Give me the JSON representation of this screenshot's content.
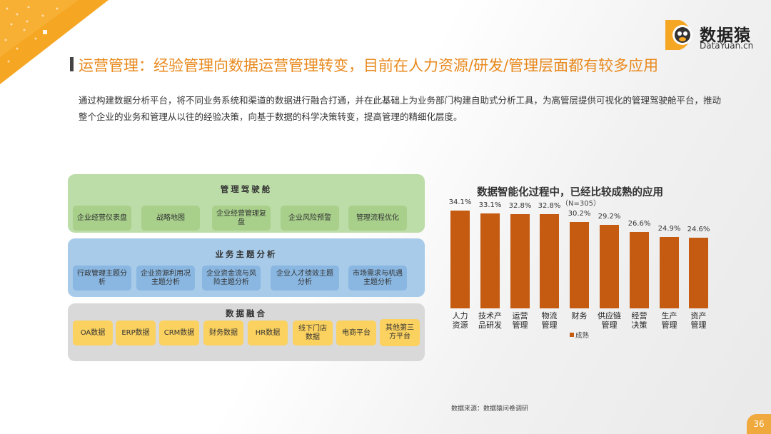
{
  "brand": {
    "logo_cn": "数据猿",
    "logo_en": "DataYuan.cn",
    "accent": "#e8891d",
    "bar_color": "#c55a11"
  },
  "page_title": "运营管理：经验管理向数据运营管理转变，目前在人力资源/研发/管理层面都有较多应用",
  "description": "通过构建数据分析平台，将不同业务系统和渠道的数据进行融合打通，并在此基础上为业务部门构建自助式分析工具，为高管层提供可视化的管理驾驶舱平台，推动整个企业的业务和管理从以往的经验决策，向基于数据的科学决策转变，提高管理的精细化层度。",
  "diagram": {
    "cockpit": {
      "title": "管理驾驶舱",
      "items": [
        "企业经营仪表盘",
        "战略地图",
        "企业经营管理复盘",
        "企业风险预警",
        "管理流程优化"
      ]
    },
    "analysis": {
      "title": "业务主题分析",
      "items": [
        "行政管理主题分析",
        "企业资源利用况主题分析",
        "企业资金流与风险主题分析",
        "企业人才绩效主题分析",
        "市场需求与机遇主题分析"
      ]
    },
    "fusion": {
      "title": "数据融合",
      "items": [
        "OA数据",
        "ERP数据",
        "CRM数据",
        "财务数据",
        "HR数据",
        "线下门店数据",
        "电商平台",
        "其他第三方平台"
      ]
    }
  },
  "chart_data": {
    "type": "bar",
    "title": "数据智能化过程中，已经比较成熟的应用",
    "subtitle": "（N=305）",
    "categories": [
      "人力资源",
      "技术产品研发",
      "运营管理",
      "物流管理",
      "财务",
      "供应链管理",
      "经营决策",
      "生产管理",
      "资产管理"
    ],
    "category_lines": [
      [
        "人力",
        "资源"
      ],
      [
        "技术产",
        "品研发"
      ],
      [
        "运营",
        "管理"
      ],
      [
        "物流",
        "管理"
      ],
      [
        "财务",
        ""
      ],
      [
        "供应链",
        "管理"
      ],
      [
        "经营",
        "决策"
      ],
      [
        "生产",
        "管理"
      ],
      [
        "资产",
        "管理"
      ]
    ],
    "series": [
      {
        "name": "成熟",
        "values": [
          34.1,
          33.1,
          32.8,
          32.8,
          30.2,
          29.2,
          26.6,
          24.9,
          24.6
        ]
      }
    ],
    "value_labels": [
      "34.1%",
      "33.1%",
      "32.8%",
      "32.8%",
      "30.2%",
      "29.2%",
      "26.6%",
      "24.9%",
      "24.6%"
    ],
    "ylim": [
      0,
      34.1
    ],
    "legend": "bottom"
  },
  "source": "数据来源：数据猿问卷调研",
  "page_number": "36"
}
